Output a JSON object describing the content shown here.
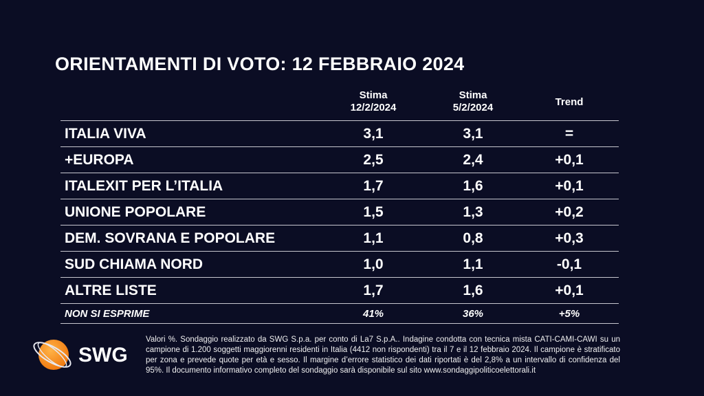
{
  "title": "ORIENTAMENTI DI VOTO: 12 FEBBRAIO 2024",
  "columns": [
    {
      "line1": "Stima",
      "line2": "12/2/2024"
    },
    {
      "line1": "Stima",
      "line2": "5/2/2024"
    },
    {
      "line1": "Trend",
      "line2": ""
    }
  ],
  "rows": [
    {
      "party": "ITALIA VIVA",
      "current": "3,1",
      "previous": "3,1",
      "trend": "="
    },
    {
      "party": "+EUROPA",
      "current": "2,5",
      "previous": "2,4",
      "trend": "+0,1"
    },
    {
      "party": "ITALEXIT PER L’ITALIA",
      "current": "1,7",
      "previous": "1,6",
      "trend": "+0,1"
    },
    {
      "party": "UNIONE POPOLARE",
      "current": "1,5",
      "previous": "1,3",
      "trend": "+0,2"
    },
    {
      "party": "DEM. SOVRANA E POPOLARE",
      "current": "1,1",
      "previous": "0,8",
      "trend": "+0,3"
    },
    {
      "party": "SUD CHIAMA NORD",
      "current": "1,0",
      "previous": "1,1",
      "trend": "-0,1"
    },
    {
      "party": "ALTRE LISTE",
      "current": "1,7",
      "previous": "1,6",
      "trend": "+0,1"
    }
  ],
  "non_si_esprime": {
    "party": "NON SI ESPRIME",
    "current": "41%",
    "previous": "36%",
    "trend": "+5%"
  },
  "footnote": "Valori %. Sondaggio realizzato da SWG S.p.a. per conto di La7 S.p.A.. Indagine condotta con tecnica mista CATI-CAMI-CAWI su un campione di 1.200 soggetti maggiorenni residenti in Italia (4412 non rispondenti) tra il 7 e il 12 febbraio 2024. Il campione è stratificato per zona e prevede quote per età e sesso. Il margine d’errore statistico dei dati riportati è del 2,8% a un intervallo di confidenza del 95%. Il documento informativo completo del sondaggio sarà disponibile sul sito www.sondaggipoliticoelettorali.it",
  "logo": {
    "text": "SWG",
    "icon": "orange-globe-orbit-icon",
    "color": "#f7931e"
  },
  "colors": {
    "background": "#0b0d24",
    "text": "#ffffff",
    "rule": "#c8c8d0"
  }
}
